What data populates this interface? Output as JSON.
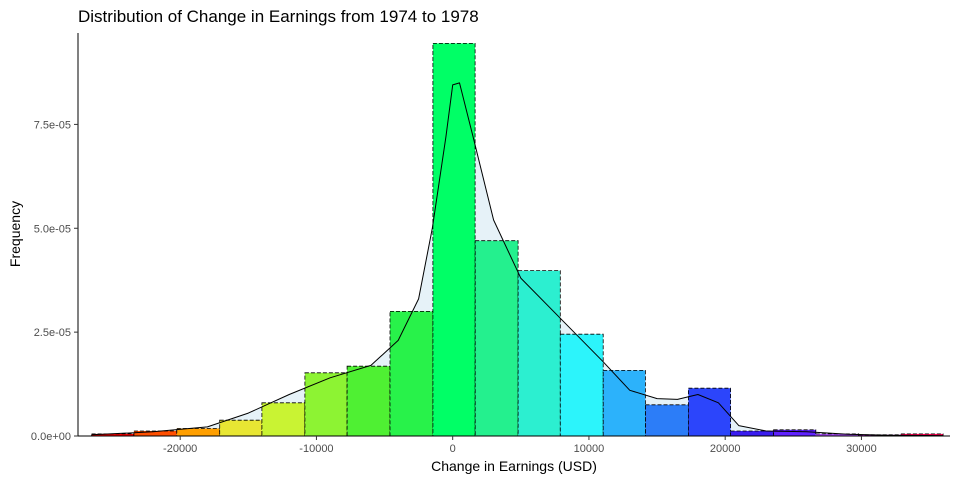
{
  "chart_data": {
    "type": "bar",
    "subtype": "histogram-with-density",
    "title": "Distribution of Change in Earnings from 1974 to 1978",
    "xlabel": "Change in Earnings (USD)",
    "ylabel": "Frequency",
    "xlim": [
      -27500,
      36500
    ],
    "ylim": [
      0,
      9.7e-05
    ],
    "x_ticks": [
      -20000,
      -10000,
      0,
      10000,
      20000,
      30000
    ],
    "x_tick_labels": [
      "-20000",
      "-10000",
      "0",
      "10000",
      "20000",
      "30000"
    ],
    "y_ticks": [
      0,
      2.5e-05,
      5e-05,
      7.5e-05
    ],
    "y_tick_labels": [
      "0.0e+00",
      "2.5e-05",
      "5.0e-05",
      "7.5e-05"
    ],
    "grid": false,
    "legend": "none",
    "bin_edges": [
      -26500,
      -23400,
      -20250,
      -17100,
      -14000,
      -10850,
      -7750,
      -4600,
      -1450,
      1650,
      4800,
      7900,
      11050,
      14150,
      17300,
      20400,
      23550,
      26650,
      29800,
      32900,
      36000
    ],
    "values": [
      5e-07,
      1.2e-06,
      1.8e-06,
      3.8e-06,
      8e-06,
      1.52e-05,
      1.68e-05,
      3e-05,
      9.45e-05,
      4.7e-05,
      3.98e-05,
      2.45e-05,
      1.58e-05,
      7.5e-06,
      1.15e-05,
      1.2e-06,
      1.5e-06,
      5e-07,
      3e-07,
      5e-07
    ],
    "bar_colors": [
      "#FF0000",
      "#FF4F00",
      "#FF9F00",
      "#E8E633",
      "#C9F333",
      "#8DF333",
      "#4FF033",
      "#28F24A",
      "#00FF66",
      "#24F08E",
      "#2CEFD0",
      "#2CF4FB",
      "#2CB2FB",
      "#2C7DF8",
      "#2C45FB",
      "#3A1CEF",
      "#6020FF",
      "#B050FF",
      "#D010F5",
      "#FF0050"
    ],
    "density": {
      "x": [
        -26500,
        -22000,
        -18000,
        -15000,
        -12000,
        -9000,
        -6000,
        -4000,
        -2500,
        -1500,
        -500,
        0,
        500,
        1500,
        3000,
        5000,
        8000,
        11000,
        13000,
        15000,
        16500,
        18000,
        19500,
        21000,
        23000,
        26000,
        29000,
        32000,
        36000
      ],
      "y": [
        3e-07,
        1e-06,
        2.2e-06,
        5.5e-06,
        1e-05,
        1.4e-05,
        1.7e-05,
        2.3e-05,
        3.3e-05,
        5e-05,
        7.2e-05,
        8.45e-05,
        8.5e-05,
        7.2e-05,
        5.2e-05,
        3.8e-05,
        2.8e-05,
        1.8e-05,
        1.1e-05,
        9e-06,
        8.8e-06,
        1e-05,
        8e-06,
        2.5e-06,
        1.2e-06,
        1e-06,
        4e-07,
        2e-07,
        1e-07
      ]
    },
    "colors": {
      "density_fill": "#e6f2f8",
      "bar_outline": "#000000",
      "density_line": "#000000",
      "axis": "#000000"
    }
  }
}
